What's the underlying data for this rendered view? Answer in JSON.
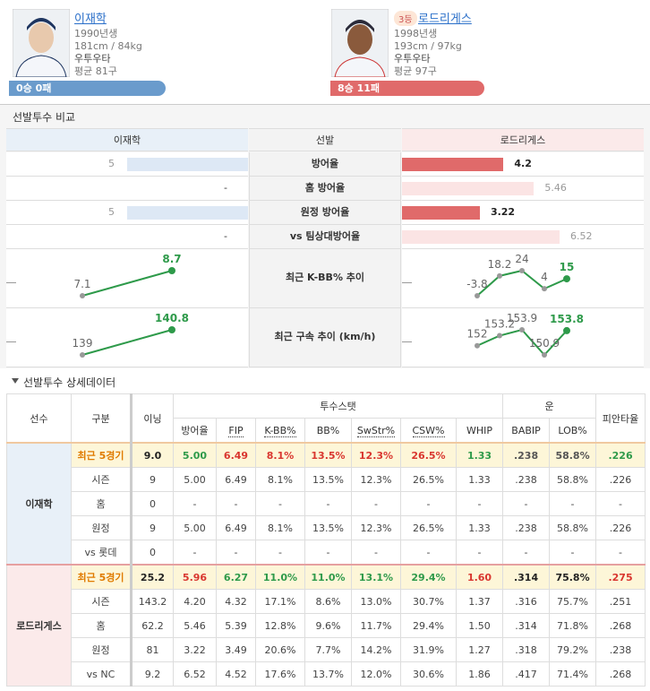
{
  "players": [
    {
      "name": "이재학",
      "birth": "1990년생",
      "body": "181cm / 84kg",
      "hand": "우투우타",
      "avg": "평균 81구",
      "record": "0승 0패",
      "color": "#6a9bcc"
    },
    {
      "rank": "3등",
      "name": "로드리게스",
      "birth": "1998년생",
      "body": "193cm / 97kg",
      "hand": "우투우타",
      "avg": "평균 97구",
      "record": "8승 11패",
      "color": "#e06a6a"
    }
  ],
  "compare": {
    "title": "선발투수 비교",
    "headers": [
      "이재학",
      "선발",
      "로드리게스"
    ],
    "era_rows": [
      {
        "label": "방어율",
        "left": 5,
        "right": 4.2,
        "left_color": "#dde8f5",
        "right_color": "#e06a6a",
        "right_emphasis": true
      },
      {
        "label": "홈 방어율",
        "left": "-",
        "right": 5.46,
        "right_color": "#fbe4e4",
        "right_emphasis": false
      },
      {
        "label": "원정 방어율",
        "left": 5,
        "right": 3.22,
        "left_color": "#dde8f5",
        "right_color": "#e06a6a",
        "right_emphasis": true
      },
      {
        "label": "vs 팀상대방어율",
        "left": "-",
        "right": 6.52,
        "right_color": "#fbe4e4",
        "right_emphasis": false
      }
    ],
    "trends": [
      {
        "label": "최근 K-BB% 추이",
        "left": [
          7.1,
          8.7
        ],
        "right": [
          -3.8,
          18.2,
          24,
          4,
          15
        ]
      },
      {
        "label": "최근 구속 추이 (km/h)",
        "left": [
          139,
          140.8
        ],
        "right": [
          152,
          153.2,
          153.9,
          150.9,
          153.8
        ]
      }
    ]
  },
  "detail": {
    "title": "선발투수 상세데이터",
    "header_top": [
      "선수",
      "구분",
      "이닝",
      "투수스탯",
      "운",
      "피안타율"
    ],
    "header_sub": [
      "방어율",
      "FIP",
      "K-BB%",
      "BB%",
      "SwStr%",
      "CSW%",
      "WHIP",
      "BABIP",
      "LOB%"
    ],
    "groups": [
      {
        "player": "이재학",
        "rows": [
          {
            "label": "최근 5경기",
            "highlight": true,
            "cells": [
              "9.0",
              "5.00",
              "6.49",
              "8.1%",
              "13.5%",
              "12.3%",
              "26.5%",
              "1.33",
              ".238",
              "58.8%",
              ".226"
            ],
            "colors": [
              "#e07b00",
              "#222222",
              "#2e9a4a",
              "#d9362f",
              "#d9362f",
              "#d9362f",
              "#d9362f",
              "#d9362f",
              "#2e9a4a",
              "#555555",
              "#555555",
              "#2e9a4a"
            ]
          },
          {
            "label": "시즌",
            "cells": [
              "9",
              "5.00",
              "6.49",
              "8.1%",
              "13.5%",
              "12.3%",
              "26.5%",
              "1.33",
              ".238",
              "58.8%",
              ".226"
            ]
          },
          {
            "label": "홈",
            "cells": [
              "0",
              "-",
              "-",
              "-",
              "-",
              "-",
              "-",
              "-",
              "-",
              "-",
              "-"
            ]
          },
          {
            "label": "원정",
            "cells": [
              "9",
              "5.00",
              "6.49",
              "8.1%",
              "13.5%",
              "12.3%",
              "26.5%",
              "1.33",
              ".238",
              "58.8%",
              ".226"
            ]
          },
          {
            "label": "vs 롯데",
            "cells": [
              "0",
              "-",
              "-",
              "-",
              "-",
              "-",
              "-",
              "-",
              "-",
              "-",
              "-"
            ]
          }
        ]
      },
      {
        "player": "로드리게스",
        "rows": [
          {
            "label": "최근 5경기",
            "highlight": true,
            "cells": [
              "25.2",
              "5.96",
              "6.27",
              "11.0%",
              "11.0%",
              "13.1%",
              "29.4%",
              "1.60",
              ".314",
              "75.8%",
              ".275"
            ],
            "colors": [
              "#e07b00",
              "#222222",
              "#d9362f",
              "#2e9a4a",
              "#2e9a4a",
              "#2e9a4a",
              "#2e9a4a",
              "#2e9a4a",
              "#d9362f",
              "#222222",
              "#222222",
              "#d9362f"
            ]
          },
          {
            "label": "시즌",
            "cells": [
              "143.2",
              "4.20",
              "4.32",
              "17.1%",
              "8.6%",
              "13.0%",
              "30.7%",
              "1.37",
              ".316",
              "75.7%",
              ".251"
            ]
          },
          {
            "label": "홈",
            "cells": [
              "62.2",
              "5.46",
              "5.39",
              "12.8%",
              "9.6%",
              "11.7%",
              "29.4%",
              "1.50",
              ".314",
              "71.8%",
              ".268"
            ]
          },
          {
            "label": "원정",
            "cells": [
              "81",
              "3.22",
              "3.49",
              "20.6%",
              "7.7%",
              "14.2%",
              "31.9%",
              "1.27",
              ".318",
              "79.2%",
              ".238"
            ]
          },
          {
            "label": "vs NC",
            "cells": [
              "9.2",
              "6.52",
              "4.52",
              "17.6%",
              "13.7%",
              "12.0%",
              "30.6%",
              "1.86",
              ".417",
              "71.4%",
              ".268"
            ]
          }
        ]
      }
    ]
  }
}
